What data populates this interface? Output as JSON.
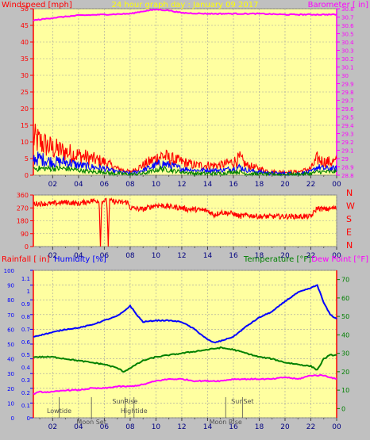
{
  "title": "24 hour graph day : January 09 2017",
  "colors": {
    "plot_bg": "#ffffa0",
    "frame": "#c0c0c0",
    "grid": "#a0a0a0",
    "red": "#ff0000",
    "blue": "#0000ff",
    "green": "#008000",
    "magenta": "#ff00ff",
    "title_yellow": "#ffff00",
    "marker_grey": "#505050"
  },
  "x_ticks": [
    "02",
    "04",
    "06",
    "08",
    "10",
    "12",
    "14",
    "16",
    "18",
    "20",
    "22",
    "00"
  ],
  "panel1": {
    "left_label": "Windspeed [mph]",
    "right_label": "Barometer [ in]",
    "left_ticks": [
      "0",
      "5",
      "10",
      "15",
      "20",
      "25",
      "30",
      "35",
      "40",
      "45",
      "50"
    ],
    "right_ticks": [
      "28.8",
      "28.9",
      "29",
      "29.1",
      "29.2",
      "29.3",
      "29.4",
      "29.5",
      "29.6",
      "29.7",
      "29.8",
      "29.9",
      "30",
      "30.1",
      "30.2",
      "30.3",
      "30.4",
      "30.5",
      "30.6",
      "30.7",
      "30.8"
    ]
  },
  "panel2": {
    "left_ticks": [
      "0",
      "90",
      "180",
      "270",
      "360"
    ],
    "right_labels": [
      "N",
      "W",
      "S",
      "E",
      "N"
    ]
  },
  "panel3": {
    "left_label_rain": "Rainfall [ in]",
    "left_label_hum": "Humidity [%]",
    "right_label_temp": "Temperature [°F]",
    "right_label_dew": "Dew Point [°F]",
    "hum_ticks": [
      "0",
      "10",
      "20",
      "30",
      "40",
      "50",
      "60",
      "70",
      "80",
      "90",
      "100"
    ],
    "rain_ticks": [
      "0",
      "0.1",
      "0.2",
      "0.3",
      "0.4",
      "0.5",
      "0.6",
      "0.7",
      "0.8",
      "0.9",
      "1",
      "1.1"
    ],
    "temp_ticks": [
      "0",
      "10",
      "20",
      "30",
      "40",
      "50",
      "60",
      "70"
    ],
    "events": [
      {
        "label": "Lowtide",
        "hour": 2.5
      },
      {
        "label": "Moon Set",
        "hour": 5.0
      },
      {
        "label": "SunRise",
        "hour": 7.6
      },
      {
        "label": "Hightide",
        "hour": 8.3
      },
      {
        "label": "SunSet",
        "hour": 16.7
      },
      {
        "label": "Moon Rise",
        "hour": 15.4
      }
    ]
  },
  "chart_data": [
    {
      "type": "line",
      "title": "24 hour graph day : January 09 2017",
      "x_unit": "hour",
      "x_range": [
        0.5,
        24
      ],
      "ylabel": "Windspeed [mph]",
      "y2label": "Barometer [ in]",
      "ylim": [
        0,
        50
      ],
      "y2lim": [
        28.8,
        30.8
      ],
      "series": [
        {
          "name": "Gust",
          "color": "#ff0000",
          "axis": "left",
          "style": "noisy",
          "x": [
            0.5,
            1,
            2,
            3,
            4,
            5,
            6,
            6.5,
            7,
            8,
            9,
            10,
            10.5,
            11,
            12,
            13,
            14,
            15,
            16,
            16.5,
            17,
            18,
            19,
            20,
            21,
            22,
            22.5,
            23,
            24
          ],
          "y": [
            11,
            10,
            8,
            7,
            6,
            5,
            4,
            3,
            2,
            1,
            3,
            5,
            6,
            5,
            4,
            3,
            3,
            3,
            4,
            5,
            3,
            2,
            1,
            1,
            1,
            2,
            5,
            4,
            4
          ]
        },
        {
          "name": "Wind",
          "color": "#0000ff",
          "axis": "left",
          "style": "noisy",
          "x": [
            0.5,
            1,
            2,
            3,
            4,
            5,
            6,
            6.5,
            7,
            8,
            9,
            10,
            10.5,
            11,
            12,
            13,
            14,
            15,
            16,
            16.5,
            17,
            18,
            19,
            20,
            21,
            22,
            22.5,
            23,
            24
          ],
          "y": [
            5,
            5,
            4,
            4,
            3,
            2.5,
            2,
            1.5,
            1,
            0.5,
            1.5,
            3,
            3.5,
            3,
            2,
            1.5,
            1.5,
            1.5,
            2,
            2.5,
            1.5,
            1,
            0.5,
            0.5,
            0.5,
            1,
            2.5,
            2,
            2
          ]
        },
        {
          "name": "Average",
          "color": "#008000",
          "axis": "left",
          "style": "noisy",
          "x": [
            0.5,
            1,
            2,
            3,
            4,
            5,
            6,
            6.5,
            7,
            8,
            9,
            10,
            10.5,
            11,
            12,
            13,
            14,
            15,
            16,
            16.5,
            17,
            18,
            19,
            20,
            21,
            22,
            22.5,
            23,
            24
          ],
          "y": [
            2,
            2,
            2,
            2,
            1.5,
            1,
            1,
            0.5,
            0.5,
            0.2,
            0.5,
            1.5,
            2,
            1.5,
            1,
            0.5,
            0.5,
            0.5,
            1,
            1,
            0.5,
            0.3,
            0.2,
            0.2,
            0.2,
            0.5,
            1,
            1,
            1
          ]
        },
        {
          "name": "Barometer",
          "color": "#ff00ff",
          "axis": "right",
          "style": "smooth",
          "x": [
            0.5,
            2,
            4,
            6,
            8,
            9,
            10,
            11,
            12,
            14,
            16,
            18,
            20,
            22,
            24
          ],
          "y": [
            30.66,
            30.69,
            30.72,
            30.73,
            30.74,
            30.77,
            30.79,
            30.78,
            30.75,
            30.74,
            30.74,
            30.74,
            30.73,
            30.73,
            30.73
          ]
        }
      ]
    },
    {
      "type": "line",
      "x_unit": "hour",
      "x_range": [
        0.5,
        24
      ],
      "ylim": [
        0,
        360
      ],
      "series": [
        {
          "name": "Wind direction",
          "color": "#ff0000",
          "style": "noisy",
          "x": [
            0.5,
            2,
            3,
            4,
            5,
            5.6,
            5.7,
            5.8,
            6.2,
            6.3,
            6.4,
            7,
            7.8,
            8,
            9,
            10,
            11,
            12,
            12.5,
            13,
            14,
            14.5,
            15,
            16,
            16.5,
            17,
            18,
            19,
            20,
            21,
            22,
            22.5,
            23,
            24
          ],
          "y": [
            300,
            300,
            310,
            300,
            320,
            320,
            0,
            320,
            320,
            0,
            320,
            310,
            310,
            270,
            260,
            290,
            280,
            270,
            260,
            260,
            250,
            220,
            240,
            230,
            210,
            220,
            210,
            210,
            210,
            210,
            210,
            270,
            260,
            270
          ]
        }
      ]
    },
    {
      "type": "line",
      "x_unit": "hour",
      "x_range": [
        0.5,
        24
      ],
      "ylabel": "Humidity [%]",
      "ylim": [
        0,
        100
      ],
      "y2label": "Temperature [°F]",
      "y2lim": [
        -5,
        75
      ],
      "series": [
        {
          "name": "Humidity",
          "color": "#0000ff",
          "axis": "left",
          "style": "smooth",
          "x": [
            0.5,
            1,
            2,
            3,
            4,
            5,
            6,
            7,
            7.5,
            8,
            8.5,
            9,
            10,
            11,
            12,
            13,
            14,
            14.5,
            15,
            16,
            17,
            18,
            19,
            20,
            21,
            22,
            22.5,
            23,
            23.5,
            24
          ],
          "y": [
            55,
            56,
            58,
            60,
            61,
            63,
            66,
            69,
            72,
            76,
            70,
            65,
            66,
            66,
            65,
            60,
            53,
            51,
            52,
            55,
            62,
            68,
            72,
            79,
            85,
            88,
            90,
            78,
            70,
            67
          ]
        },
        {
          "name": "Temperature",
          "color": "#008000",
          "axis": "right",
          "style": "smooth",
          "x": [
            0.5,
            1,
            2,
            3,
            4,
            5,
            6,
            7,
            7.5,
            8,
            9,
            10,
            11,
            12,
            13,
            14,
            15,
            16,
            17,
            18,
            19,
            20,
            21,
            22,
            22.5,
            23,
            23.5,
            24
          ],
          "y": [
            28,
            28,
            28,
            27,
            26,
            25,
            24,
            22,
            20,
            22,
            26,
            28,
            29,
            30,
            31,
            32,
            33,
            32,
            30,
            28,
            27,
            25,
            24,
            23,
            21,
            27,
            29,
            29
          ]
        },
        {
          "name": "Dew Point",
          "color": "#ff00ff",
          "axis": "right",
          "style": "smooth",
          "x": [
            0.5,
            1,
            2,
            3,
            4,
            5,
            6,
            7,
            8,
            9,
            10,
            11,
            12,
            13,
            14,
            15,
            16,
            17,
            18,
            19,
            20,
            21,
            22,
            23,
            24
          ],
          "y": [
            8,
            9,
            9,
            10,
            10,
            11,
            11,
            12,
            12,
            13,
            15,
            16,
            16,
            15,
            15,
            15,
            16,
            16,
            16,
            16,
            17,
            16,
            18,
            18,
            16
          ]
        }
      ]
    }
  ]
}
